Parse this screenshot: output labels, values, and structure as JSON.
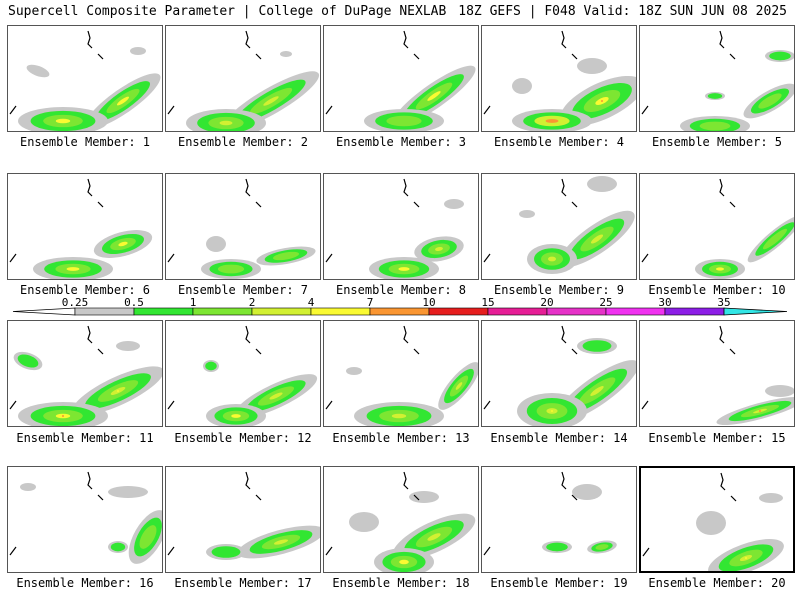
{
  "header": {
    "title": "Supercell Composite Parameter | College of DuPage NEXLAB",
    "run_info": "18Z GEFS | F048 Valid: 18Z SUN JUN 08 2025"
  },
  "colorbar": {
    "labels": [
      "0.25",
      "0.5",
      "1",
      "2",
      "4",
      "7",
      "10",
      "15",
      "20",
      "25",
      "30",
      "35"
    ],
    "colors": [
      "#c8c8c8",
      "#32e632",
      "#7de632",
      "#d2f032",
      "#fafa32",
      "#fa9632",
      "#e61e1e",
      "#e61e96",
      "#e632c8",
      "#f032f0",
      "#8c1ee6",
      "#aa5ae6",
      "#32e6e6"
    ]
  },
  "members": [
    {
      "caption": "Ensemble Member: 1",
      "selected": false
    },
    {
      "caption": "Ensemble Member: 2",
      "selected": false
    },
    {
      "caption": "Ensemble Member: 3",
      "selected": false
    },
    {
      "caption": "Ensemble Member: 4",
      "selected": false
    },
    {
      "caption": "Ensemble Member: 5",
      "selected": false
    },
    {
      "caption": "Ensemble Member: 6",
      "selected": false
    },
    {
      "caption": "Ensemble Member: 7",
      "selected": false
    },
    {
      "caption": "Ensemble Member: 8",
      "selected": false
    },
    {
      "caption": "Ensemble Member: 9",
      "selected": false
    },
    {
      "caption": "Ensemble Member: 10",
      "selected": false
    },
    {
      "caption": "Ensemble Member: 11",
      "selected": false
    },
    {
      "caption": "Ensemble Member: 12",
      "selected": false
    },
    {
      "caption": "Ensemble Member: 13",
      "selected": false
    },
    {
      "caption": "Ensemble Member: 14",
      "selected": false
    },
    {
      "caption": "Ensemble Member: 15",
      "selected": false
    },
    {
      "caption": "Ensemble Member: 16",
      "selected": false
    },
    {
      "caption": "Ensemble Member: 17",
      "selected": false
    },
    {
      "caption": "Ensemble Member: 18",
      "selected": false
    },
    {
      "caption": "Ensemble Member: 19",
      "selected": false
    },
    {
      "caption": "Ensemble Member: 20",
      "selected": true
    }
  ]
}
